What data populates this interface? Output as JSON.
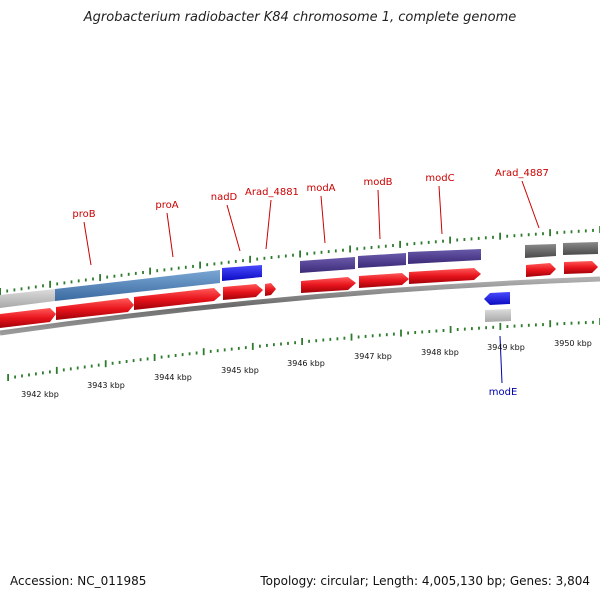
{
  "title": "Agrobacterium radiobacter K84 chromosome 1, complete genome",
  "footer": {
    "accession": "Accession: NC_011985",
    "summary": "Topology: circular; Length: 4,005,130 bp; Genes: 3,804"
  },
  "colors": {
    "label_top": "#cc0000",
    "label_bottom": "#0000aa",
    "cds": "#e8141c",
    "gene_blue": "#4a7db2",
    "gene_bright_blue": "#1010e0",
    "gene_purple": "#4a3a8a",
    "gene_gray": "#b8b8b8",
    "gene_dark": "#606060",
    "tick": "#2e7d2e",
    "backbone": "#777777"
  },
  "ticks": {
    "labels": [
      "3942 kbp",
      "3943 kbp",
      "3944 kbp",
      "3945 kbp",
      "3946 kbp",
      "3947 kbp",
      "3948 kbp",
      "3949 kbp",
      "3950 kbp"
    ]
  },
  "genes_top": [
    {
      "label": "proB"
    },
    {
      "label": "proA"
    },
    {
      "label": "nadD"
    },
    {
      "label": "Arad_4881"
    },
    {
      "label": "modA"
    },
    {
      "label": "modB"
    },
    {
      "label": "modC"
    },
    {
      "label": "Arad_4887"
    }
  ],
  "genes_bottom": [
    {
      "label": "modE"
    }
  ]
}
